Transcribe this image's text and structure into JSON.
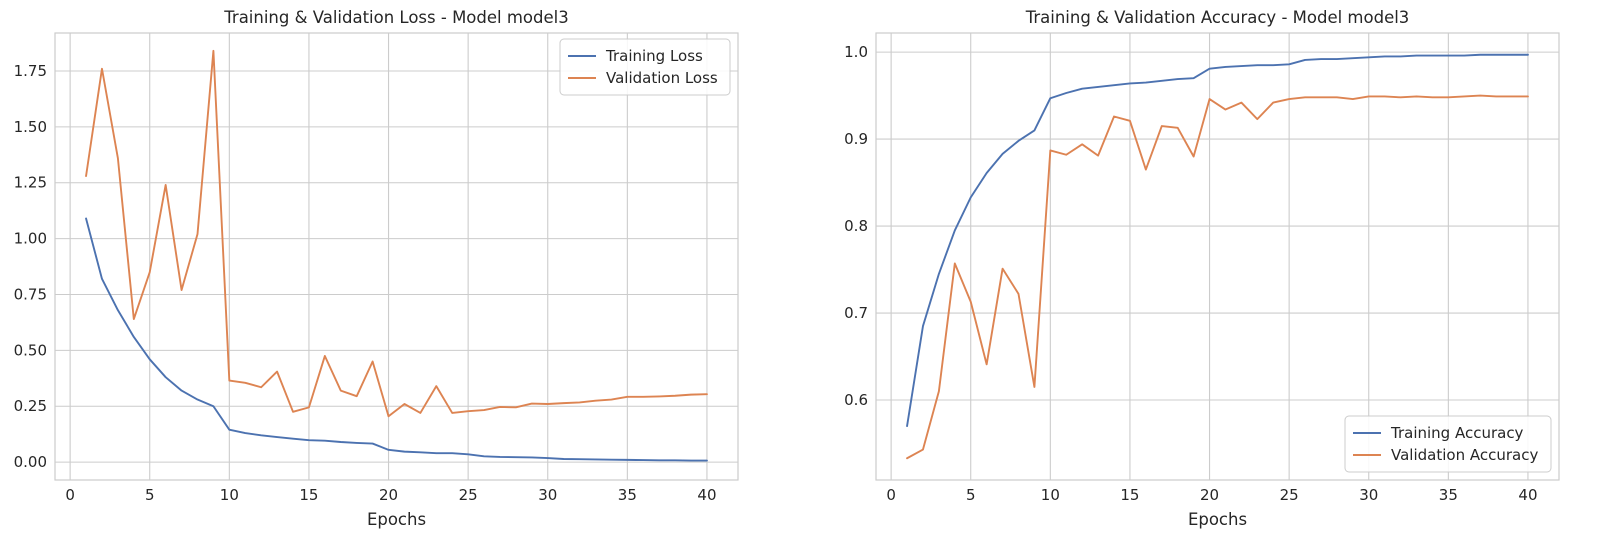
{
  "chart_data": [
    {
      "type": "line",
      "title": "Training & Validation Loss - Model model3",
      "xlabel": "Epochs",
      "ylabel": "",
      "xlim": [
        -0.95,
        41.95
      ],
      "ylim": [
        -0.08,
        1.92
      ],
      "xticks": [
        0,
        5,
        10,
        15,
        20,
        25,
        30,
        35,
        40
      ],
      "yticks": [
        0.0,
        0.25,
        0.5,
        0.75,
        1.0,
        1.25,
        1.5,
        1.75
      ],
      "ytick_labels": [
        "0.00",
        "0.25",
        "0.50",
        "0.75",
        "1.00",
        "1.25",
        "1.50",
        "1.75"
      ],
      "grid": true,
      "legend": "top-right",
      "x": [
        1,
        2,
        3,
        4,
        5,
        6,
        7,
        8,
        9,
        10,
        11,
        12,
        13,
        14,
        15,
        16,
        17,
        18,
        19,
        20,
        21,
        22,
        23,
        24,
        25,
        26,
        27,
        28,
        29,
        30,
        31,
        32,
        33,
        34,
        35,
        36,
        37,
        38,
        39,
        40
      ],
      "series": [
        {
          "name": "Training Loss",
          "color": "#4c72b0",
          "values": [
            1.09,
            0.82,
            0.68,
            0.56,
            0.46,
            0.38,
            0.32,
            0.28,
            0.25,
            0.145,
            0.13,
            0.12,
            0.112,
            0.105,
            0.098,
            0.096,
            0.09,
            0.086,
            0.083,
            0.055,
            0.047,
            0.044,
            0.04,
            0.04,
            0.035,
            0.026,
            0.023,
            0.022,
            0.021,
            0.018,
            0.014,
            0.013,
            0.012,
            0.011,
            0.01,
            0.009,
            0.008,
            0.008,
            0.007,
            0.007
          ]
        },
        {
          "name": "Validation Loss",
          "color": "#dd8452",
          "values": [
            1.28,
            1.76,
            1.36,
            0.64,
            0.85,
            1.24,
            0.77,
            1.02,
            1.84,
            0.365,
            0.355,
            0.335,
            0.405,
            0.225,
            0.245,
            0.475,
            0.32,
            0.295,
            0.45,
            0.205,
            0.26,
            0.22,
            0.34,
            0.22,
            0.228,
            0.233,
            0.247,
            0.245,
            0.262,
            0.26,
            0.264,
            0.267,
            0.275,
            0.28,
            0.292,
            0.292,
            0.294,
            0.297,
            0.302,
            0.304
          ]
        }
      ]
    },
    {
      "type": "line",
      "title": "Training & Validation Accuracy - Model model3",
      "xlabel": "Epochs",
      "ylabel": "",
      "xlim": [
        -0.95,
        41.95
      ],
      "ylim": [
        0.508,
        1.022
      ],
      "xticks": [
        0,
        5,
        10,
        15,
        20,
        25,
        30,
        35,
        40
      ],
      "yticks": [
        0.6,
        0.7,
        0.8,
        0.9,
        1.0
      ],
      "ytick_labels": [
        "0.6",
        "0.7",
        "0.8",
        "0.9",
        "1.0"
      ],
      "grid": true,
      "legend": "bottom-right",
      "x": [
        1,
        2,
        3,
        4,
        5,
        6,
        7,
        8,
        9,
        10,
        11,
        12,
        13,
        14,
        15,
        16,
        17,
        18,
        19,
        20,
        21,
        22,
        23,
        24,
        25,
        26,
        27,
        28,
        29,
        30,
        31,
        32,
        33,
        34,
        35,
        36,
        37,
        38,
        39,
        40
      ],
      "series": [
        {
          "name": "Training Accuracy",
          "color": "#4c72b0",
          "values": [
            0.57,
            0.685,
            0.745,
            0.795,
            0.833,
            0.861,
            0.883,
            0.898,
            0.91,
            0.947,
            0.953,
            0.958,
            0.96,
            0.962,
            0.964,
            0.965,
            0.967,
            0.969,
            0.97,
            0.981,
            0.983,
            0.984,
            0.985,
            0.985,
            0.986,
            0.991,
            0.992,
            0.992,
            0.993,
            0.994,
            0.995,
            0.995,
            0.996,
            0.996,
            0.996,
            0.996,
            0.997,
            0.997,
            0.997,
            0.997
          ]
        },
        {
          "name": "Validation Accuracy",
          "color": "#dd8452",
          "values": [
            0.533,
            0.543,
            0.61,
            0.757,
            0.713,
            0.641,
            0.751,
            0.722,
            0.615,
            0.887,
            0.882,
            0.894,
            0.881,
            0.926,
            0.921,
            0.865,
            0.915,
            0.913,
            0.88,
            0.946,
            0.934,
            0.942,
            0.923,
            0.942,
            0.946,
            0.948,
            0.948,
            0.948,
            0.946,
            0.949,
            0.949,
            0.948,
            0.949,
            0.948,
            0.948,
            0.949,
            0.95,
            0.949,
            0.949,
            0.949
          ]
        }
      ]
    }
  ]
}
